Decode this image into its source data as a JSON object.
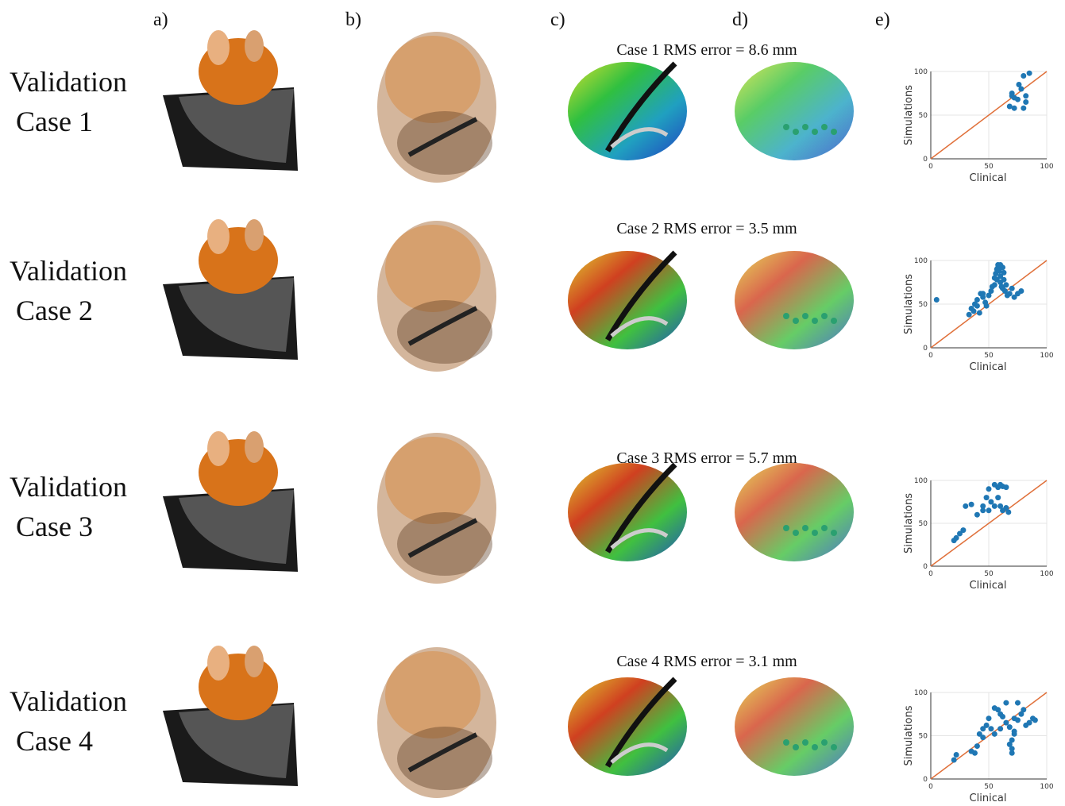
{
  "panel_labels": [
    "a)",
    "b)",
    "c)",
    "d)",
    "e)"
  ],
  "rows": [
    {
      "label_lines": [
        "Validation",
        "Case 1"
      ],
      "caption": "Case 1 RMS error = 8.6 mm"
    },
    {
      "label_lines": [
        "Validation",
        "Case 2"
      ],
      "caption": "Case 2 RMS error = 3.5 mm"
    },
    {
      "label_lines": [
        "Validation",
        "Case 3"
      ],
      "caption": "Case 3 RMS error = 5.7 mm"
    },
    {
      "label_lines": [
        "Validation",
        "Case 4"
      ],
      "caption": "Case 4 RMS error = 3.1 mm"
    }
  ],
  "chart_data": [
    {
      "type": "scatter",
      "xlabel": "Clinical",
      "ylabel": "Simulations",
      "xlim": [
        0,
        100
      ],
      "ylim": [
        0,
        100
      ],
      "xticks": [
        0,
        50,
        100
      ],
      "yticks": [
        0,
        50,
        100
      ],
      "grid": true,
      "color": "#1f77b4",
      "reference_line": {
        "x": [
          0,
          100
        ],
        "y": [
          0,
          100
        ],
        "color": "#e0703a"
      },
      "x": [
        80,
        85,
        70,
        72,
        75,
        78,
        82,
        68,
        72,
        80,
        82,
        76,
        70
      ],
      "y": [
        95,
        98,
        75,
        70,
        68,
        80,
        72,
        60,
        58,
        58,
        65,
        85,
        72
      ]
    },
    {
      "type": "scatter",
      "xlabel": "Clinical",
      "ylabel": "Simulations",
      "xlim": [
        0,
        100
      ],
      "ylim": [
        0,
        100
      ],
      "xticks": [
        0,
        50,
        100
      ],
      "yticks": [
        0,
        50,
        100
      ],
      "grid": true,
      "color": "#1f77b4",
      "reference_line": {
        "x": [
          0,
          100
        ],
        "y": [
          0,
          100
        ],
        "color": "#e0703a"
      },
      "x": [
        5,
        33,
        35,
        37,
        38,
        40,
        40,
        42,
        43,
        45,
        47,
        50,
        52,
        53,
        55,
        55,
        56,
        57,
        58,
        58,
        59,
        60,
        60,
        61,
        62,
        62,
        63,
        64,
        65,
        66,
        68,
        70,
        72,
        75,
        78,
        48,
        45,
        60,
        57,
        63
      ],
      "y": [
        55,
        38,
        45,
        42,
        50,
        48,
        55,
        40,
        62,
        58,
        52,
        60,
        65,
        70,
        72,
        80,
        85,
        90,
        92,
        95,
        88,
        75,
        82,
        70,
        92,
        68,
        78,
        65,
        72,
        60,
        62,
        68,
        58,
        62,
        65,
        48,
        62,
        95,
        78,
        86
      ]
    },
    {
      "type": "scatter",
      "xlabel": "Clinical",
      "ylabel": "Simulations",
      "xlim": [
        0,
        100
      ],
      "ylim": [
        0,
        100
      ],
      "xticks": [
        0,
        50,
        100
      ],
      "yticks": [
        0,
        50,
        100
      ],
      "grid": true,
      "color": "#1f77b4",
      "reference_line": {
        "x": [
          0,
          100
        ],
        "y": [
          0,
          100
        ],
        "color": "#e0703a"
      },
      "x": [
        20,
        22,
        25,
        28,
        30,
        35,
        40,
        45,
        48,
        50,
        55,
        58,
        60,
        62,
        65,
        52,
        55,
        60,
        62,
        65,
        50,
        58,
        45,
        67
      ],
      "y": [
        30,
        33,
        38,
        42,
        70,
        72,
        60,
        65,
        80,
        90,
        95,
        92,
        95,
        93,
        92,
        75,
        70,
        70,
        65,
        68,
        65,
        80,
        70,
        63
      ]
    },
    {
      "type": "scatter",
      "xlabel": "Clinical",
      "ylabel": "Simulations",
      "xlim": [
        0,
        100
      ],
      "ylim": [
        0,
        100
      ],
      "xticks": [
        0,
        50,
        100
      ],
      "yticks": [
        0,
        50,
        100
      ],
      "grid": true,
      "color": "#1f77b4",
      "reference_line": {
        "x": [
          0,
          100
        ],
        "y": [
          0,
          100
        ],
        "color": "#e0703a"
      },
      "x": [
        20,
        22,
        35,
        38,
        40,
        42,
        45,
        48,
        50,
        52,
        55,
        58,
        60,
        62,
        65,
        65,
        68,
        70,
        70,
        72,
        72,
        75,
        75,
        78,
        80,
        82,
        85,
        88,
        90,
        68,
        70,
        72,
        60,
        55,
        45
      ],
      "y": [
        22,
        28,
        32,
        30,
        38,
        52,
        48,
        62,
        70,
        58,
        82,
        80,
        75,
        72,
        88,
        65,
        60,
        45,
        30,
        70,
        52,
        88,
        68,
        75,
        80,
        62,
        65,
        70,
        68,
        40,
        35,
        55,
        58,
        52,
        58
      ]
    }
  ]
}
